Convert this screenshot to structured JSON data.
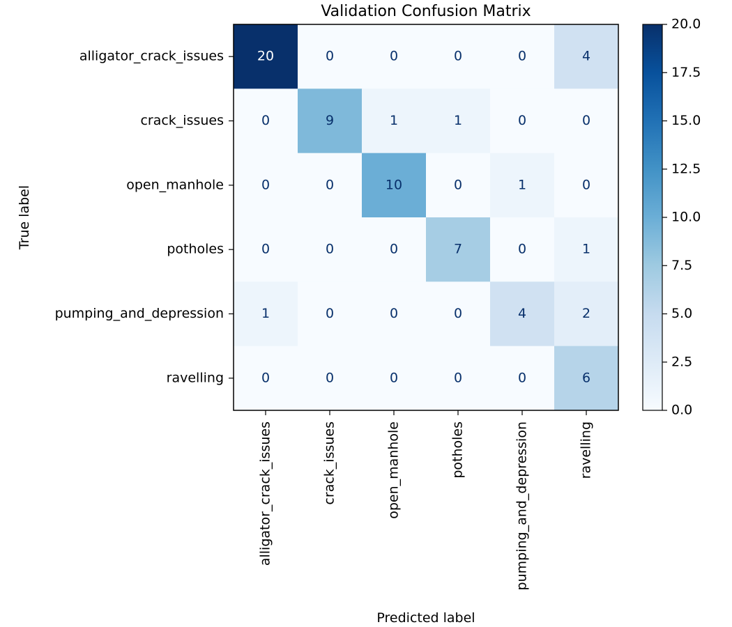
{
  "chart_data": {
    "type": "heatmap",
    "title": "Validation Confusion Matrix",
    "xlabel": "Predicted label",
    "ylabel": "True label",
    "x_categories": [
      "alligator_crack_issues",
      "crack_issues",
      "open_manhole",
      "potholes",
      "pumping_and_depression",
      "ravelling"
    ],
    "y_categories": [
      "alligator_crack_issues",
      "crack_issues",
      "open_manhole",
      "potholes",
      "pumping_and_depression",
      "ravelling"
    ],
    "values": [
      [
        20,
        0,
        0,
        0,
        0,
        4
      ],
      [
        0,
        9,
        1,
        1,
        0,
        0
      ],
      [
        0,
        0,
        10,
        0,
        1,
        0
      ],
      [
        0,
        0,
        0,
        7,
        0,
        1
      ],
      [
        1,
        0,
        0,
        0,
        4,
        2
      ],
      [
        0,
        0,
        0,
        0,
        0,
        6
      ]
    ],
    "colormap": "Blues",
    "colorbar": {
      "range": [
        0,
        20
      ],
      "ticks": [
        "0.0",
        "2.5",
        "5.0",
        "7.5",
        "10.0",
        "12.5",
        "15.0",
        "17.5",
        "20.0"
      ]
    },
    "text_colors": {
      "dark": "#08306b",
      "light": "#ffffff"
    }
  }
}
